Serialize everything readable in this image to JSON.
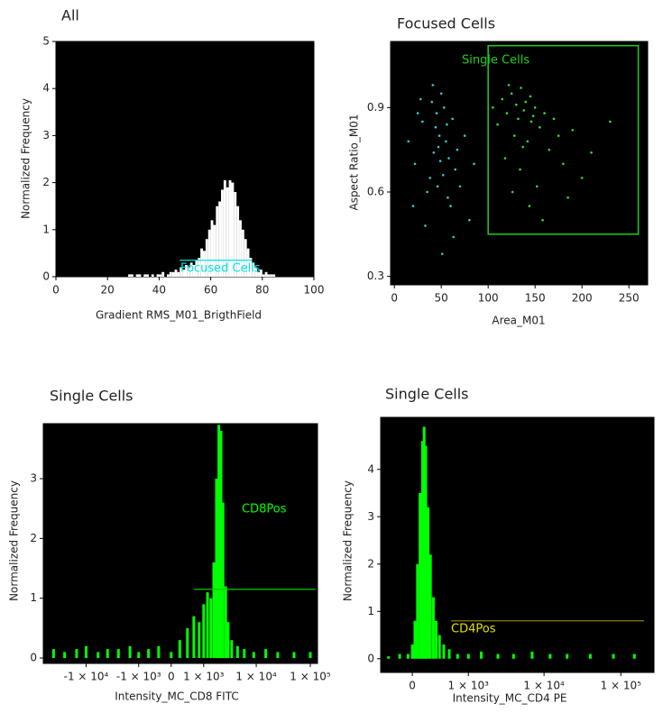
{
  "chart_data": [
    {
      "type": "histogram",
      "title": "All",
      "xlabel": "Gradient RMS_M01_BrigthField",
      "ylabel": "Normalized Frequency",
      "color": "#ffffff",
      "xlim": [
        0,
        100
      ],
      "ylim": [
        0,
        5
      ],
      "xticks": [
        0,
        20,
        40,
        60,
        80,
        100
      ],
      "yticks": [
        0,
        1,
        2,
        3,
        4,
        5
      ],
      "bins": [
        27,
        28,
        29,
        30,
        31,
        32,
        33,
        34,
        35,
        36,
        37,
        38,
        39,
        40,
        41,
        42,
        43,
        44,
        45,
        46,
        47,
        48,
        49,
        50,
        51,
        52,
        53,
        54,
        55,
        56,
        57,
        58,
        59,
        60,
        61,
        62,
        63,
        64,
        65,
        66,
        67,
        68,
        69,
        70,
        71,
        72,
        73,
        74,
        75,
        76,
        77,
        78,
        79,
        80,
        81,
        82,
        83,
        84,
        85,
        86,
        87
      ],
      "values": [
        0,
        0.05,
        0.05,
        0,
        0.05,
        0.05,
        0,
        0.05,
        0.05,
        0,
        0.05,
        0,
        0.05,
        0.05,
        0.1,
        0,
        0.05,
        0.1,
        0.1,
        0.15,
        0.1,
        0.2,
        0.15,
        0.25,
        0.2,
        0.3,
        0.25,
        0.35,
        0.4,
        0.6,
        0.55,
        0.8,
        1.0,
        1.2,
        1.1,
        1.5,
        1.6,
        1.85,
        2.05,
        1.9,
        2.05,
        2.0,
        1.8,
        1.5,
        1.2,
        1.0,
        0.8,
        0.6,
        0.4,
        0.3,
        0.2,
        0.1,
        0.15,
        0.05,
        0.1,
        0.05,
        0.05,
        0.05,
        0,
        0
      ],
      "gate": {
        "label": "Focused Cells",
        "x": [
          48,
          76
        ],
        "y": 0.35,
        "color": "#00e5e5"
      }
    },
    {
      "type": "scatter",
      "title": "Focused Cells",
      "xlabel": "Area_M01",
      "ylabel": "Aspect Ratio_M01",
      "xlim": [
        -4,
        270
      ],
      "ylim": [
        0.27,
        1.135
      ],
      "xticks": [
        0,
        50,
        100,
        150,
        200,
        250
      ],
      "yticks": [
        0.3,
        0.6,
        0.9
      ],
      "series": [
        {
          "color": "#33cccc",
          "x": [
            15,
            22,
            30,
            35,
            40,
            42,
            45,
            48,
            50,
            52,
            55,
            58,
            60,
            62,
            65,
            70,
            75,
            80,
            85,
            28,
            38,
            44,
            47,
            53,
            57,
            33,
            41,
            49,
            56,
            63,
            20,
            46,
            51,
            67,
            25
          ],
          "y": [
            0.78,
            0.7,
            0.85,
            0.6,
            0.92,
            0.74,
            0.88,
            0.8,
            0.95,
            0.66,
            0.78,
            0.72,
            0.55,
            0.86,
            0.68,
            0.62,
            0.8,
            0.5,
            0.7,
            0.93,
            0.65,
            0.83,
            0.76,
            0.9,
            0.58,
            0.48,
            0.98,
            0.71,
            0.84,
            0.44,
            0.55,
            0.62,
            0.38,
            0.75,
            0.88
          ]
        },
        {
          "color": "#33dd33",
          "x": [
            105,
            110,
            115,
            120,
            125,
            128,
            130,
            132,
            135,
            138,
            140,
            142,
            145,
            148,
            150,
            155,
            160,
            165,
            170,
            175,
            180,
            190,
            200,
            210,
            118,
            126,
            134,
            144,
            152,
            158,
            122,
            137,
            146,
            185,
            230
          ],
          "y": [
            0.9,
            0.84,
            0.93,
            0.88,
            0.95,
            0.8,
            0.91,
            0.86,
            0.97,
            0.89,
            0.92,
            0.78,
            0.94,
            0.87,
            0.9,
            0.83,
            0.88,
            0.75,
            0.86,
            0.8,
            0.7,
            0.82,
            0.65,
            0.74,
            0.72,
            0.6,
            0.68,
            0.55,
            0.62,
            0.5,
            0.98,
            0.76,
            0.85,
            0.58,
            0.85
          ]
        }
      ],
      "gate": {
        "label": "Single Cells",
        "x": [
          100,
          260
        ],
        "y": [
          0.45,
          1.12
        ],
        "color": "#22cc22"
      }
    },
    {
      "type": "bar",
      "title": "Single Cells",
      "xlabel": "Intensity_MC_CD8 FITC",
      "ylabel": "Normalized Frequency",
      "xscale": "logicle",
      "color": "#00ff00",
      "xlim": [
        -62000,
        136000
      ],
      "ylim": [
        -0.09,
        3.92
      ],
      "xticks": [
        {
          "value": -10000,
          "label": "-1 × 10⁴"
        },
        {
          "value": -1000,
          "label": "-1 × 10³"
        },
        0,
        {
          "value": 1000,
          "label": "1 × 10³"
        },
        {
          "value": 10000,
          "label": "1 × 10⁴"
        },
        {
          "value": 100000,
          "label": "1 × 10⁵"
        }
      ],
      "yticks": [
        0,
        1,
        2,
        3
      ],
      "x": [
        -40000,
        -25000,
        -15000,
        -10000,
        -6000,
        -4000,
        -2500,
        -1500,
        -1000,
        -600,
        -300,
        0,
        200,
        400,
        600,
        800,
        1000,
        1200,
        1400,
        1600,
        1800,
        2000,
        2200,
        2400,
        2700,
        3000,
        3500,
        4500,
        6000,
        9000,
        15000,
        25000,
        50000,
        100000
      ],
      "values": [
        0.15,
        0.1,
        0.15,
        0.2,
        0.1,
        0.15,
        0.15,
        0.2,
        0.1,
        0.15,
        0.2,
        0.1,
        0.3,
        0.5,
        0.7,
        0.6,
        0.9,
        1.1,
        1.0,
        1.6,
        3.0,
        3.9,
        3.8,
        2.6,
        1.2,
        0.6,
        0.3,
        0.2,
        0.15,
        0.1,
        0.15,
        0.1,
        0.1,
        0.1
      ],
      "gate": {
        "label": "CD8Pos",
        "x": [
          600,
          125000
        ],
        "y": 1.15,
        "color": "#00cc00",
        "label_color": "#00ff00"
      }
    },
    {
      "type": "bar",
      "title": "Single Cells",
      "xlabel": "Intensity_MC_CD4 PE",
      "ylabel": "Normalized Frequency",
      "xscale": "logicle",
      "color": "#00ff00",
      "xlim": [
        -424,
        270000
      ],
      "ylim": [
        -0.29,
        5.1
      ],
      "xticks": [
        0,
        {
          "value": 1000,
          "label": "1 × 10³"
        },
        {
          "value": 10000,
          "label": "1 × 10⁴"
        },
        {
          "value": 100000,
          "label": "1 × 10⁵"
        }
      ],
      "yticks": [
        0,
        1,
        2,
        3,
        4
      ],
      "x": [
        -300,
        -150,
        -50,
        0,
        30,
        60,
        90,
        120,
        140,
        160,
        190,
        220,
        260,
        300,
        350,
        420,
        520,
        700,
        1000,
        1500,
        2500,
        4000,
        7000,
        12000,
        20000,
        40000,
        80000,
        150000
      ],
      "values": [
        0.05,
        0.1,
        0.1,
        0.3,
        0.8,
        2.0,
        3.5,
        4.6,
        4.9,
        4.5,
        3.2,
        2.2,
        1.3,
        0.8,
        0.5,
        0.3,
        0.2,
        0.1,
        0.1,
        0.15,
        0.1,
        0.1,
        0.15,
        0.1,
        0.1,
        0.1,
        0.1,
        0.1
      ],
      "gate": {
        "label": "CD4Pos",
        "x": [
          556,
          201000
        ],
        "y": 0.8,
        "color": "#8b7d00",
        "label_color": "#e0e000"
      }
    }
  ]
}
